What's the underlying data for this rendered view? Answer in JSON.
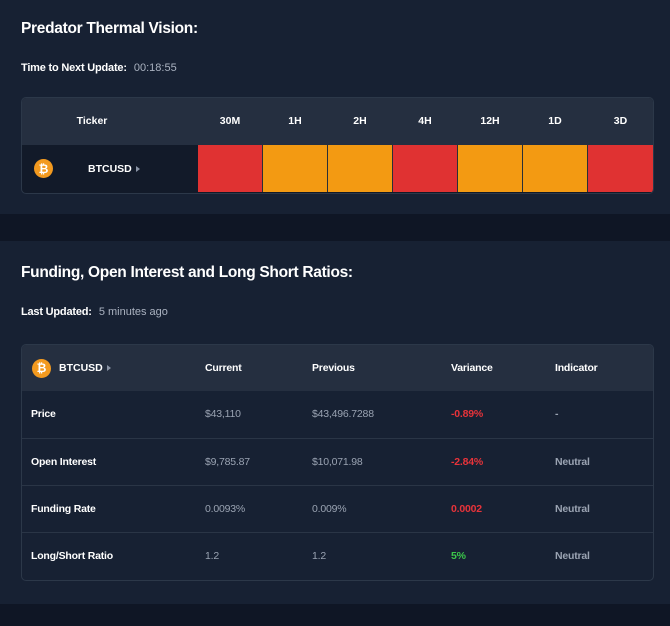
{
  "thermal": {
    "title": "Predator Thermal Vision:",
    "update_label": "Time to Next Update:",
    "update_value": "00:18:55",
    "table": {
      "ticker_header": "Ticker",
      "timeframes": [
        "30M",
        "1H",
        "2H",
        "4H",
        "12H",
        "1D",
        "3D"
      ],
      "rows": [
        {
          "icon": "bitcoin-icon",
          "ticker": "BTCUSD",
          "heat": [
            "red",
            "orange",
            "orange",
            "red",
            "orange",
            "orange",
            "red"
          ]
        }
      ]
    }
  },
  "funding": {
    "title": "Funding, Open Interest and Long Short Ratios:",
    "updated_label": "Last Updated:",
    "updated_value": "5 minutes ago",
    "table": {
      "ticker": "BTCUSD",
      "columns": [
        "Current",
        "Previous",
        "Variance",
        "Indicator"
      ],
      "rows": [
        {
          "label": "Price",
          "current": "$43,110",
          "previous": "$43,496.7288",
          "variance": "-0.89%",
          "variance_sign": "neg",
          "indicator": "-"
        },
        {
          "label": "Open Interest",
          "current": "$9,785.87",
          "previous": "$10,071.98",
          "variance": "-2.84%",
          "variance_sign": "neg",
          "indicator": "Neutral"
        },
        {
          "label": "Funding Rate",
          "current": "0.0093%",
          "previous": "0.009%",
          "variance": "0.0002",
          "variance_sign": "neg",
          "indicator": "Neutral"
        },
        {
          "label": "Long/Short Ratio",
          "current": "1.2",
          "previous": "1.2",
          "variance": "5%",
          "variance_sign": "pos",
          "indicator": "Neutral"
        }
      ]
    }
  },
  "colors": {
    "red": "#e03232",
    "orange": "#f39a12",
    "accent_btc": "#f39a1f",
    "negative": "#e8333a",
    "positive": "#3cc84a"
  }
}
